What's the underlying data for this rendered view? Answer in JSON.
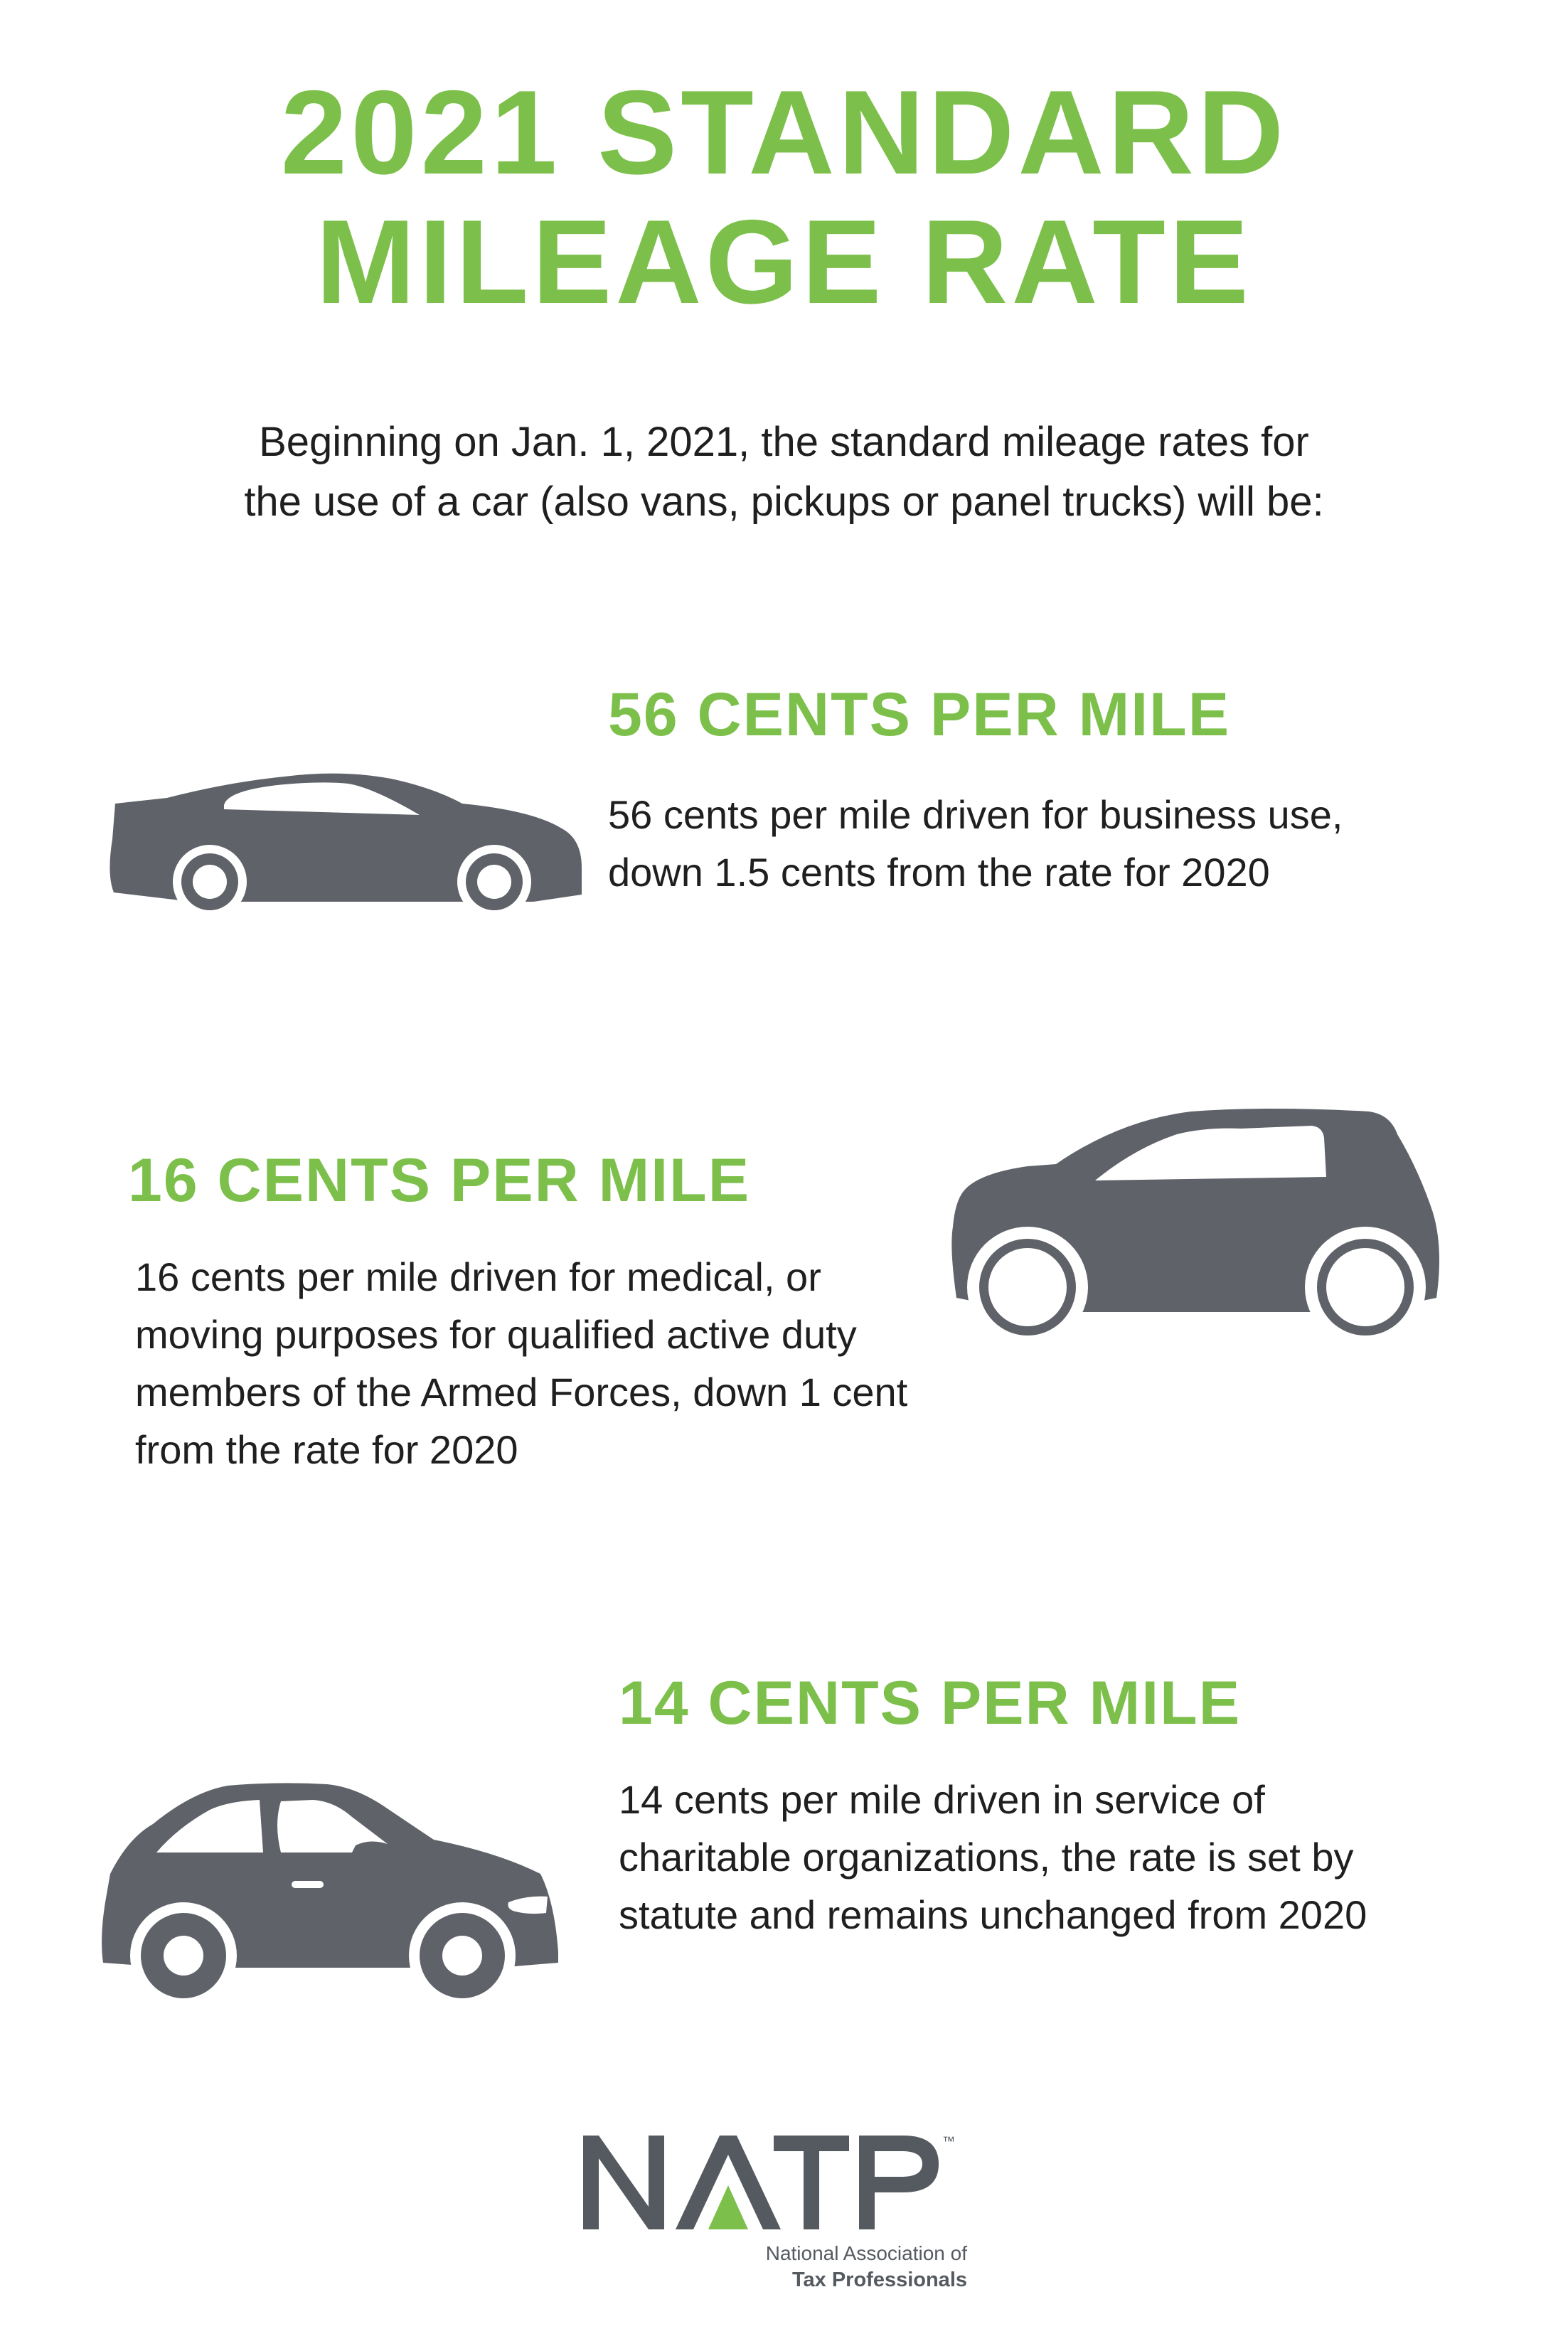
{
  "title": {
    "line1": "2021 STANDARD",
    "line2": "MILEAGE RATE"
  },
  "intro": {
    "line1": "Beginning on Jan. 1, 2021, the standard mileage rates for",
    "line2": "the use of a car (also vans, pickups or panel trucks) will be:"
  },
  "rates": [
    {
      "heading": "56 CENTS PER MILE",
      "lines": [
        "56 cents per mile driven for business use,",
        "down 1.5 cents from the rate for 2020"
      ],
      "icon": "sedan-car-icon"
    },
    {
      "heading": "16 CENTS PER MILE",
      "lines": [
        "16 cents per mile driven for medical, or",
        "moving purposes for qualified active duty",
        "members of the Armed Forces, down 1 cent",
        "from the rate for 2020"
      ],
      "icon": "hatchback-car-icon"
    },
    {
      "heading": "14 CENTS PER MILE",
      "lines": [
        "14 cents per mile driven in service of",
        "charitable organizations, the rate is set by",
        "statute and remains unchanged from 2020"
      ],
      "icon": "compact-car-icon"
    }
  ],
  "logo": {
    "wordmark": "NATP",
    "trademark": "™",
    "tagline_line1": "National Association of",
    "tagline_line2": "Tax Professionals"
  },
  "colors": {
    "accent_green": "#7cc04b",
    "car_gray": "#5f6268",
    "text": "#1f1f1f"
  }
}
